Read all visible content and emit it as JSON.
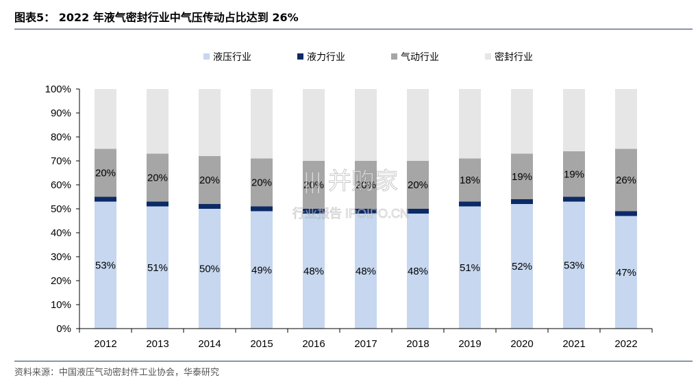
{
  "figure": {
    "title": "图表5：  2022 年液气密封行业中气压传动占比达到 26%",
    "source": "资料来源：中国液压气动密封件工业协会，华泰研究",
    "watermark_text": "行业报告 IPOIPO.CN"
  },
  "chart_data": {
    "type": "bar",
    "stacked": true,
    "title": "",
    "xlabel": "",
    "ylabel": "",
    "ylim": [
      0,
      100
    ],
    "y_unit": "%",
    "y_ticks": [
      "0%",
      "10%",
      "20%",
      "30%",
      "40%",
      "50%",
      "60%",
      "70%",
      "80%",
      "90%",
      "100%"
    ],
    "categories": [
      "2012",
      "2013",
      "2014",
      "2015",
      "2016",
      "2017",
      "2018",
      "2019",
      "2020",
      "2021",
      "2022"
    ],
    "legend_position": "top",
    "grid": false,
    "series": [
      {
        "name": "液压行业",
        "color": "#c6d7ef",
        "values": [
          53,
          51,
          50,
          49,
          48,
          48,
          48,
          51,
          52,
          53,
          47
        ],
        "labels": [
          "53%",
          "51%",
          "50%",
          "49%",
          "48%",
          "48%",
          "48%",
          "51%",
          "52%",
          "53%",
          "47%"
        ]
      },
      {
        "name": "液力行业",
        "color": "#0c2a66",
        "values": [
          2,
          2,
          2,
          2,
          2,
          2,
          2,
          2,
          2,
          2,
          2
        ],
        "labels": null
      },
      {
        "name": "气动行业",
        "color": "#a6a6a6",
        "values": [
          20,
          20,
          20,
          20,
          20,
          20,
          20,
          18,
          19,
          19,
          26
        ],
        "labels": [
          "20%",
          "20%",
          "20%",
          "20%",
          "20%",
          "20%",
          "20%",
          "18%",
          "19%",
          "19%",
          "26%"
        ]
      },
      {
        "name": "密封行业",
        "color": "#e6e6e6",
        "values": [
          25,
          27,
          28,
          29,
          30,
          30,
          30,
          29,
          27,
          26,
          25
        ],
        "labels": null
      }
    ]
  }
}
